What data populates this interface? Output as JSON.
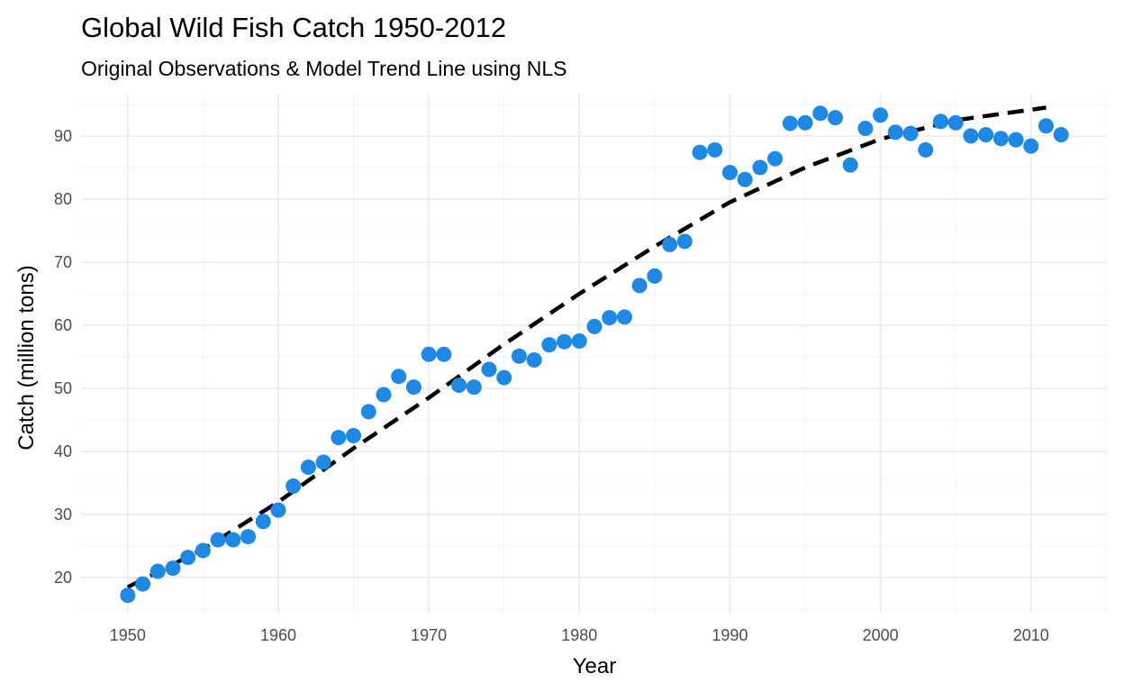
{
  "chart_data": {
    "type": "scatter",
    "title": "Global Wild Fish Catch 1950-2012",
    "subtitle": "Original Observations & Model Trend Line using NLS",
    "xlabel": "Year",
    "ylabel": "Catch (million tons)",
    "xlim": [
      1946.9,
      2015.1
    ],
    "ylim": [
      14.3,
      96.7
    ],
    "x_ticks": [
      1950,
      1960,
      1970,
      1980,
      1990,
      2000,
      2010
    ],
    "y_ticks": [
      20,
      30,
      40,
      50,
      60,
      70,
      80,
      90
    ],
    "grid": true,
    "legend": "none",
    "series": [
      {
        "kind": "points",
        "color": "#1e88e5",
        "x": [
          1950,
          1951,
          1952,
          1953,
          1954,
          1955,
          1956,
          1957,
          1958,
          1959,
          1960,
          1961,
          1962,
          1963,
          1964,
          1965,
          1966,
          1967,
          1968,
          1969,
          1970,
          1971,
          1972,
          1973,
          1974,
          1975,
          1976,
          1977,
          1978,
          1979,
          1980,
          1981,
          1982,
          1983,
          1984,
          1985,
          1986,
          1987,
          1988,
          1989,
          1990,
          1991,
          1992,
          1993,
          1994,
          1995,
          1996,
          1997,
          1998,
          1999,
          2000,
          2001,
          2002,
          2003,
          2004,
          2005,
          2006,
          2007,
          2008,
          2009,
          2010,
          2011,
          2012
        ],
        "y": [
          17.2,
          19.0,
          21.0,
          21.5,
          23.2,
          24.3,
          26.0,
          26.0,
          26.5,
          28.9,
          30.7,
          34.5,
          37.5,
          38.3,
          42.2,
          42.5,
          46.3,
          49.0,
          51.9,
          50.2,
          55.4,
          55.4,
          50.5,
          50.2,
          53.0,
          51.7,
          55.1,
          54.5,
          56.9,
          57.4,
          57.5,
          59.8,
          61.2,
          61.3,
          66.3,
          67.8,
          72.8,
          73.3,
          87.4,
          87.8,
          84.2,
          83.1,
          85.0,
          86.4,
          92.0,
          92.1,
          93.6,
          92.9,
          85.4,
          91.2,
          93.3,
          90.6,
          90.4,
          87.8,
          92.3,
          92.1,
          90.0,
          90.2,
          89.6,
          89.4,
          88.4,
          91.6,
          90.2
        ]
      },
      {
        "kind": "trend-line",
        "style": "dashed",
        "color": "#000000",
        "x": [
          1950,
          1955,
          1960,
          1965,
          1970,
          1975,
          1980,
          1985,
          1990,
          1995,
          2000,
          2005,
          2011
        ],
        "y": [
          18.5,
          24.5,
          32.0,
          40.5,
          48.5,
          57.0,
          65.0,
          72.5,
          79.5,
          85.0,
          89.5,
          92.5,
          94.5
        ]
      }
    ]
  }
}
